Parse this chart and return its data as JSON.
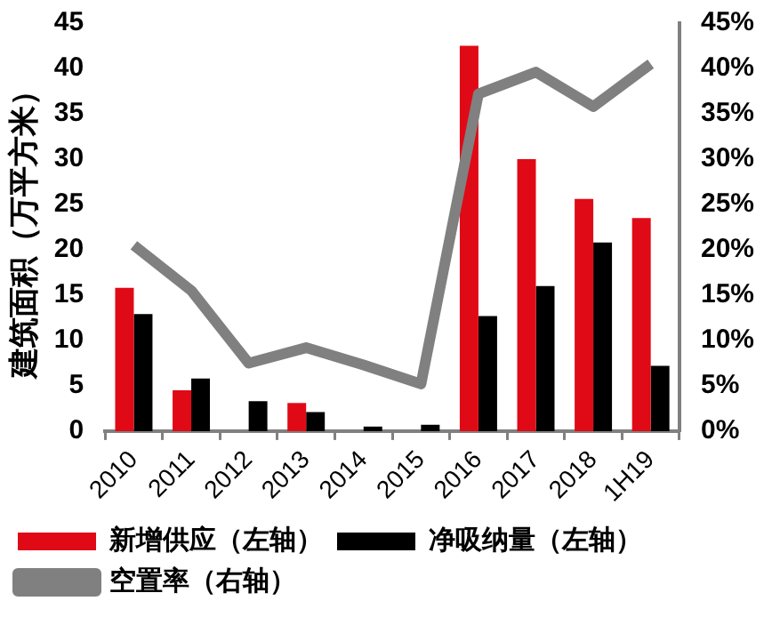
{
  "chart_data": {
    "type": "bar",
    "ylabel": "建筑面积（万平方米）",
    "categories": [
      "2010",
      "2011",
      "2012",
      "2013",
      "2014",
      "2015",
      "2016",
      "2017",
      "2018",
      "1H19"
    ],
    "series": [
      {
        "name": "新增供应（左轴）",
        "color": "#e00a16",
        "values": [
          15.8,
          4.5,
          0,
          3.1,
          0,
          0,
          42.5,
          30,
          25.6,
          23.5
        ]
      },
      {
        "name": "净吸纳量（左轴）",
        "color": "#000000",
        "values": [
          12.9,
          5.8,
          3.3,
          2.1,
          0.5,
          0.7,
          12.7,
          16,
          20.8,
          7.2
        ]
      },
      {
        "name": "空置率（右轴）",
        "type": "line",
        "axis": "y2",
        "color": "#808080",
        "values": [
          20.5,
          15.5,
          7.5,
          9.2,
          7.3,
          5.2,
          37.2,
          39.6,
          35.8,
          40.5
        ]
      }
    ],
    "ylim": [
      0,
      45
    ],
    "yticks": [
      0,
      5,
      10,
      15,
      20,
      25,
      30,
      35,
      40,
      45
    ],
    "y2lim": [
      0,
      45
    ],
    "y2ticks": [
      {
        "value": 0,
        "label": "0%"
      },
      {
        "value": 5,
        "label": "5%"
      },
      {
        "value": 10,
        "label": "10%"
      },
      {
        "value": 15,
        "label": "15%"
      },
      {
        "value": 20,
        "label": "20%"
      },
      {
        "value": 25,
        "label": "25%"
      },
      {
        "value": 30,
        "label": "30%"
      },
      {
        "value": 35,
        "label": "35%"
      },
      {
        "value": 40,
        "label": "40%"
      },
      {
        "value": 45,
        "label": "45%"
      }
    ],
    "grid": false,
    "legend": "bottom",
    "marker": "none"
  }
}
